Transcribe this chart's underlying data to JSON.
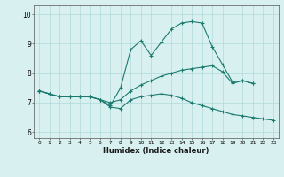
{
  "x": [
    0,
    1,
    2,
    3,
    4,
    5,
    6,
    7,
    8,
    9,
    10,
    11,
    12,
    13,
    14,
    15,
    16,
    17,
    18,
    19,
    20,
    21,
    22,
    23
  ],
  "line1": [
    7.4,
    7.3,
    7.2,
    7.2,
    7.2,
    7.2,
    7.1,
    6.9,
    7.5,
    8.8,
    9.1,
    8.6,
    9.05,
    9.5,
    9.7,
    9.75,
    9.7,
    8.9,
    8.3,
    7.7,
    7.75,
    7.65,
    null,
    null
  ],
  "line2": [
    7.4,
    7.3,
    7.2,
    7.2,
    7.2,
    7.2,
    7.1,
    7.0,
    7.1,
    7.4,
    7.6,
    7.75,
    7.9,
    8.0,
    8.1,
    8.15,
    8.2,
    8.25,
    8.05,
    7.65,
    7.75,
    7.65,
    null,
    null
  ],
  "line3": [
    7.4,
    7.3,
    7.2,
    7.2,
    7.2,
    7.2,
    7.1,
    6.85,
    6.8,
    7.1,
    7.2,
    7.25,
    7.3,
    7.25,
    7.15,
    7.0,
    6.9,
    6.8,
    6.7,
    6.6,
    6.55,
    6.5,
    6.45,
    6.4
  ],
  "bg_color": "#d8f0f0",
  "line_color": "#1a7a6e",
  "grid_color": "#b0d8d8",
  "xlabel": "Humidex (Indice chaleur)",
  "xlim": [
    -0.5,
    23.5
  ],
  "ylim": [
    5.8,
    10.3
  ],
  "yticks": [
    6,
    7,
    8,
    9,
    10
  ],
  "xticks": [
    0,
    1,
    2,
    3,
    4,
    5,
    6,
    7,
    8,
    9,
    10,
    11,
    12,
    13,
    14,
    15,
    16,
    17,
    18,
    19,
    20,
    21,
    22,
    23
  ],
  "xtick_labels": [
    "0",
    "1",
    "2",
    "3",
    "4",
    "5",
    "6",
    "7",
    "8",
    "9",
    "10",
    "11",
    "12",
    "13",
    "14",
    "15",
    "16",
    "17",
    "18",
    "19",
    "20",
    "21",
    "22",
    "23"
  ]
}
